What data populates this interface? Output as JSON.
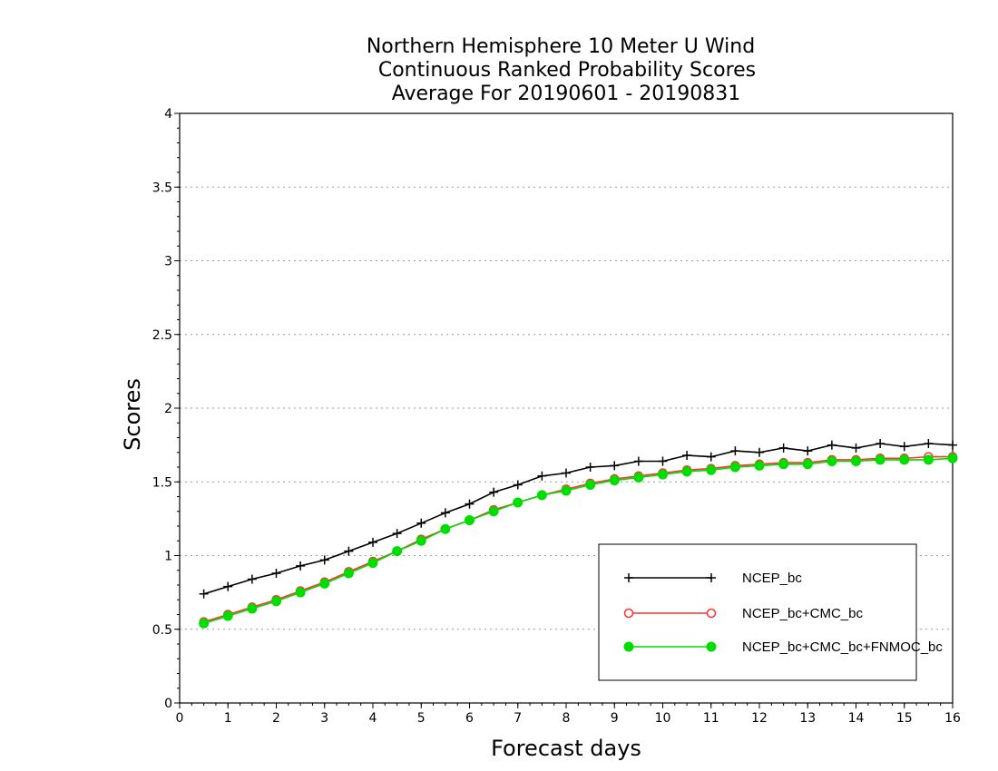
{
  "chart_data": {
    "type": "line",
    "title_lines": [
      "Northern Hemisphere 10 Meter U Wind",
      "Continuous Ranked Probability Scores",
      "Average For 20190601 - 20190831"
    ],
    "xlabel": "Forecast days",
    "ylabel": "Scores",
    "xlim": [
      0,
      16
    ],
    "ylim": [
      0,
      4
    ],
    "x_ticks": [
      0,
      1,
      2,
      3,
      4,
      5,
      6,
      7,
      8,
      9,
      10,
      11,
      12,
      13,
      14,
      15,
      16
    ],
    "y_ticks": [
      0,
      0.5,
      1,
      1.5,
      2,
      2.5,
      3,
      3.5,
      4
    ],
    "y_tick_labels": [
      "0",
      "0.5",
      "1",
      "1.5",
      "2",
      "2.5",
      "3",
      "3.5",
      "4"
    ],
    "grid": "horizontal dotted",
    "legend_position": "bottom-right",
    "x": [
      0.5,
      1,
      1.5,
      2,
      2.5,
      3,
      3.5,
      4,
      4.5,
      5,
      5.5,
      6,
      6.5,
      7,
      7.5,
      8,
      8.5,
      9,
      9.5,
      10,
      10.5,
      11,
      11.5,
      12,
      12.5,
      13,
      13.5,
      14,
      14.5,
      15,
      15.5,
      16
    ],
    "series": [
      {
        "name": "NCEP_bc",
        "color": "#000000",
        "marker": "plus",
        "values": [
          0.74,
          0.79,
          0.84,
          0.88,
          0.93,
          0.97,
          1.03,
          1.09,
          1.15,
          1.22,
          1.29,
          1.35,
          1.43,
          1.48,
          1.54,
          1.56,
          1.6,
          1.61,
          1.64,
          1.64,
          1.68,
          1.67,
          1.71,
          1.7,
          1.73,
          1.71,
          1.75,
          1.73,
          1.76,
          1.74,
          1.76,
          1.75
        ]
      },
      {
        "name": "NCEP_bc+CMC_bc",
        "color": "#ff3030",
        "marker": "open-circle",
        "values": [
          0.55,
          0.6,
          0.65,
          0.7,
          0.76,
          0.82,
          0.89,
          0.96,
          1.03,
          1.11,
          1.18,
          1.24,
          1.31,
          1.36,
          1.41,
          1.45,
          1.49,
          1.52,
          1.54,
          1.56,
          1.58,
          1.59,
          1.61,
          1.62,
          1.63,
          1.63,
          1.65,
          1.65,
          1.66,
          1.66,
          1.67,
          1.67
        ]
      },
      {
        "name": "NCEP_bc+CMC_bc+FNMOC_bc",
        "color": "#00dd00",
        "marker": "filled-circle",
        "values": [
          0.54,
          0.59,
          0.64,
          0.69,
          0.75,
          0.81,
          0.88,
          0.95,
          1.03,
          1.1,
          1.18,
          1.24,
          1.3,
          1.36,
          1.41,
          1.44,
          1.48,
          1.51,
          1.53,
          1.55,
          1.57,
          1.58,
          1.6,
          1.61,
          1.62,
          1.62,
          1.64,
          1.64,
          1.65,
          1.65,
          1.65,
          1.66
        ]
      }
    ]
  }
}
